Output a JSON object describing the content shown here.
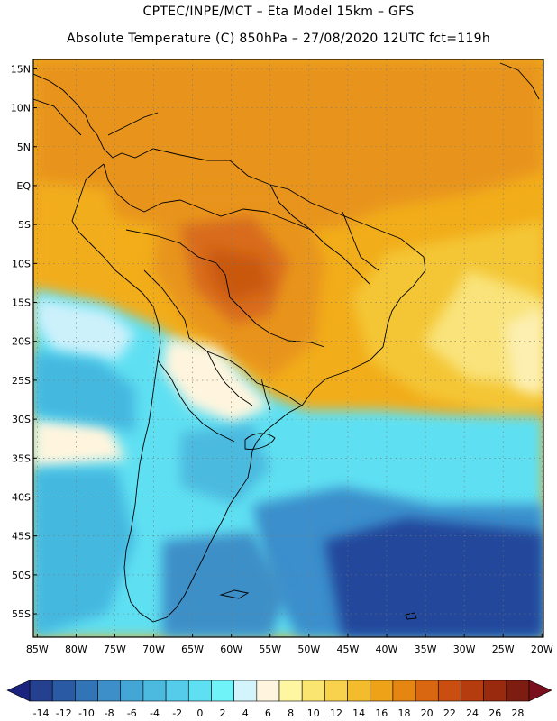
{
  "titles": {
    "line1": "CPTEC/INPE/MCT –  Eta Model 15km – GFS",
    "line2": "Absolute Temperature (C) 850hPa – 27/08/2020 12UTC fct=119h"
  },
  "map": {
    "lat_labels": [
      "15N",
      "10N",
      "5N",
      "EQ",
      "5S",
      "10S",
      "15S",
      "20S",
      "25S",
      "30S",
      "35S",
      "40S",
      "45S",
      "50S",
      "55S"
    ],
    "lon_labels": [
      "85W",
      "80W",
      "75W",
      "70W",
      "65W",
      "60W",
      "55W",
      "50W",
      "45W",
      "40W",
      "35W",
      "30W",
      "25W",
      "20W"
    ],
    "lat_values": [
      15,
      10,
      5,
      0,
      -5,
      -10,
      -15,
      -20,
      -25,
      -30,
      -35,
      -40,
      -45,
      -50,
      -55
    ],
    "lon_values": [
      -85,
      -80,
      -75,
      -70,
      -65,
      -60,
      -55,
      -50,
      -45,
      -40,
      -35,
      -30,
      -25,
      -20
    ],
    "extent": {
      "lon_min": -85.5,
      "lon_max": -19.8,
      "lat_min": -58,
      "lat_max": 16.2
    },
    "field_description_colors": {
      "very_warm": "#d86c1d",
      "warm": "#e8941c",
      "mild_warm": "#f2ad1a",
      "mild": "#f4c634",
      "cool_yellow": "#f9e37a",
      "pale": "#fff7e0",
      "pale_cyan": "#cdf1fb",
      "cyan": "#5fe0f2",
      "light_blue": "#44b8e0",
      "blue": "#3a8fcc",
      "deep_blue": "#23479b"
    }
  },
  "colorbar": {
    "labels": [
      "-14",
      "-12",
      "-10",
      "-8",
      "-6",
      "-4",
      "-2",
      "0",
      "2",
      "4",
      "6",
      "8",
      "10",
      "12",
      "14",
      "16",
      "18",
      "20",
      "22",
      "24",
      "26",
      "28"
    ],
    "colors": [
      "#24408f",
      "#2a5aa4",
      "#3374b6",
      "#3c8fc8",
      "#44a6d5",
      "#4cbadf",
      "#54ccea",
      "#5fe0f2",
      "#6ff3f8",
      "#d4f4fb",
      "#fff5de",
      "#fef6a0",
      "#fbe571",
      "#f8d24c",
      "#f3bc2d",
      "#eea218",
      "#e58613",
      "#d96611",
      "#c94e10",
      "#b43c0e",
      "#9a2a0e",
      "#7d1c10"
    ],
    "left_arrow_color": "#1a237e",
    "right_arrow_color": "#7a0f1e"
  }
}
